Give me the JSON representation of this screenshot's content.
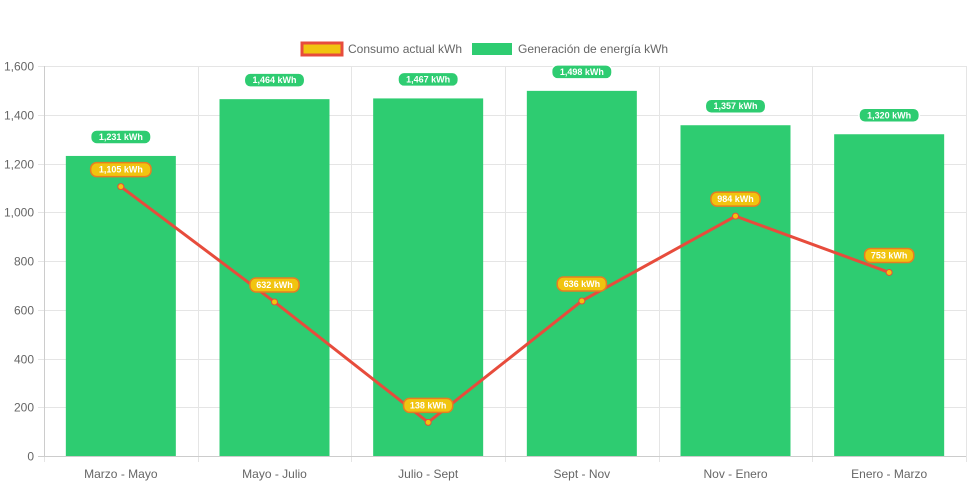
{
  "chart_data": {
    "type": "bar",
    "categories": [
      "Marzo - Mayo",
      "Mayo - Julio",
      "Julio - Sept",
      "Sept - Nov",
      "Nov - Enero",
      "Enero - Marzo"
    ],
    "series": [
      {
        "name": "Consumo actual kWh",
        "type": "line",
        "values": [
          1105,
          632,
          138,
          636,
          984,
          753
        ],
        "labels": [
          "1,105 kWh",
          "632 kWh",
          "138 kWh",
          "636 kWh",
          "984 kWh",
          "753 kWh"
        ],
        "color": "#e74c3c",
        "marker_color": "#f1c40f"
      },
      {
        "name": "Generación de energía kWh",
        "type": "bar",
        "values": [
          1231,
          1464,
          1467,
          1498,
          1357,
          1320
        ],
        "labels": [
          "1,231 kWh",
          "1,464 kWh",
          "1,467 kWh",
          "1,498 kWh",
          "1,357 kWh",
          "1,320 kWh"
        ],
        "color": "#2ecc71"
      }
    ],
    "ylim": [
      0,
      1600
    ],
    "y_ticks": [
      0,
      200,
      400,
      600,
      800,
      1000,
      1200,
      1400,
      1600
    ],
    "y_tick_labels": [
      "0",
      "200",
      "400",
      "600",
      "800",
      "1,000",
      "1,200",
      "1,400",
      "1,600"
    ],
    "legend_position": "top-center",
    "grid": true
  }
}
